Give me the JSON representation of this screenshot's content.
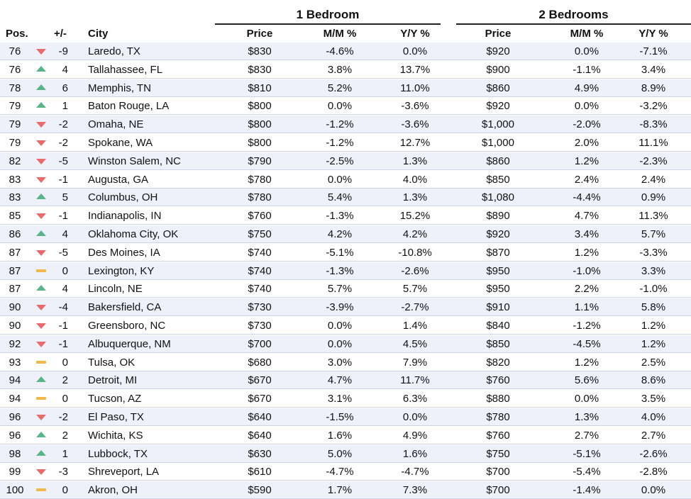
{
  "chart_data": {
    "type": "table",
    "groups": [
      "1 Bedroom",
      "2 Bedrooms"
    ],
    "columns": {
      "pos": "Pos.",
      "change": "+/-",
      "city": "City",
      "price_1": "Price",
      "mm_1": "M/M %",
      "yy_1": "Y/Y %",
      "price_2": "Price",
      "mm_2": "M/M %",
      "yy_2": "Y/Y %"
    },
    "colors": {
      "up": "#58b58a",
      "down": "#e86a6a",
      "flat": "#f2b94a",
      "alt_row": "#eef0fa",
      "row_border": "#cfd6ea"
    },
    "rows": [
      {
        "pos": "76",
        "trend": "down",
        "change": "-9",
        "city": "Laredo, TX",
        "price_1": "$830",
        "mm_1": "-4.6%",
        "yy_1": "0.0%",
        "price_2": "$920",
        "mm_2": "0.0%",
        "yy_2": "-7.1%"
      },
      {
        "pos": "76",
        "trend": "up",
        "change": "4",
        "city": "Tallahassee, FL",
        "price_1": "$830",
        "mm_1": "3.8%",
        "yy_1": "13.7%",
        "price_2": "$900",
        "mm_2": "-1.1%",
        "yy_2": "3.4%"
      },
      {
        "pos": "78",
        "trend": "up",
        "change": "6",
        "city": "Memphis, TN",
        "price_1": "$810",
        "mm_1": "5.2%",
        "yy_1": "11.0%",
        "price_2": "$860",
        "mm_2": "4.9%",
        "yy_2": "8.9%"
      },
      {
        "pos": "79",
        "trend": "up",
        "change": "1",
        "city": "Baton Rouge, LA",
        "price_1": "$800",
        "mm_1": "0.0%",
        "yy_1": "-3.6%",
        "price_2": "$920",
        "mm_2": "0.0%",
        "yy_2": "-3.2%"
      },
      {
        "pos": "79",
        "trend": "down",
        "change": "-2",
        "city": "Omaha, NE",
        "price_1": "$800",
        "mm_1": "-1.2%",
        "yy_1": "-3.6%",
        "price_2": "$1,000",
        "mm_2": "-2.0%",
        "yy_2": "-8.3%"
      },
      {
        "pos": "79",
        "trend": "down",
        "change": "-2",
        "city": "Spokane, WA",
        "price_1": "$800",
        "mm_1": "-1.2%",
        "yy_1": "12.7%",
        "price_2": "$1,000",
        "mm_2": "2.0%",
        "yy_2": "11.1%"
      },
      {
        "pos": "82",
        "trend": "down",
        "change": "-5",
        "city": "Winston Salem, NC",
        "price_1": "$790",
        "mm_1": "-2.5%",
        "yy_1": "1.3%",
        "price_2": "$860",
        "mm_2": "1.2%",
        "yy_2": "-2.3%"
      },
      {
        "pos": "83",
        "trend": "down",
        "change": "-1",
        "city": "Augusta, GA",
        "price_1": "$780",
        "mm_1": "0.0%",
        "yy_1": "4.0%",
        "price_2": "$850",
        "mm_2": "2.4%",
        "yy_2": "2.4%"
      },
      {
        "pos": "83",
        "trend": "up",
        "change": "5",
        "city": "Columbus, OH",
        "price_1": "$780",
        "mm_1": "5.4%",
        "yy_1": "1.3%",
        "price_2": "$1,080",
        "mm_2": "-4.4%",
        "yy_2": "0.9%"
      },
      {
        "pos": "85",
        "trend": "down",
        "change": "-1",
        "city": "Indianapolis, IN",
        "price_1": "$760",
        "mm_1": "-1.3%",
        "yy_1": "15.2%",
        "price_2": "$890",
        "mm_2": "4.7%",
        "yy_2": "11.3%"
      },
      {
        "pos": "86",
        "trend": "up",
        "change": "4",
        "city": "Oklahoma City, OK",
        "price_1": "$750",
        "mm_1": "4.2%",
        "yy_1": "4.2%",
        "price_2": "$920",
        "mm_2": "3.4%",
        "yy_2": "5.7%"
      },
      {
        "pos": "87",
        "trend": "down",
        "change": "-5",
        "city": "Des Moines, IA",
        "price_1": "$740",
        "mm_1": "-5.1%",
        "yy_1": "-10.8%",
        "price_2": "$870",
        "mm_2": "1.2%",
        "yy_2": "-3.3%"
      },
      {
        "pos": "87",
        "trend": "flat",
        "change": "0",
        "city": "Lexington, KY",
        "price_1": "$740",
        "mm_1": "-1.3%",
        "yy_1": "-2.6%",
        "price_2": "$950",
        "mm_2": "-1.0%",
        "yy_2": "3.3%"
      },
      {
        "pos": "87",
        "trend": "up",
        "change": "4",
        "city": "Lincoln, NE",
        "price_1": "$740",
        "mm_1": "5.7%",
        "yy_1": "5.7%",
        "price_2": "$950",
        "mm_2": "2.2%",
        "yy_2": "-1.0%"
      },
      {
        "pos": "90",
        "trend": "down",
        "change": "-4",
        "city": "Bakersfield, CA",
        "price_1": "$730",
        "mm_1": "-3.9%",
        "yy_1": "-2.7%",
        "price_2": "$910",
        "mm_2": "1.1%",
        "yy_2": "5.8%"
      },
      {
        "pos": "90",
        "trend": "down",
        "change": "-1",
        "city": "Greensboro, NC",
        "price_1": "$730",
        "mm_1": "0.0%",
        "yy_1": "1.4%",
        "price_2": "$840",
        "mm_2": "-1.2%",
        "yy_2": "1.2%"
      },
      {
        "pos": "92",
        "trend": "down",
        "change": "-1",
        "city": "Albuquerque, NM",
        "price_1": "$700",
        "mm_1": "0.0%",
        "yy_1": "4.5%",
        "price_2": "$850",
        "mm_2": "-4.5%",
        "yy_2": "1.2%"
      },
      {
        "pos": "93",
        "trend": "flat",
        "change": "0",
        "city": "Tulsa, OK",
        "price_1": "$680",
        "mm_1": "3.0%",
        "yy_1": "7.9%",
        "price_2": "$820",
        "mm_2": "1.2%",
        "yy_2": "2.5%"
      },
      {
        "pos": "94",
        "trend": "up",
        "change": "2",
        "city": "Detroit, MI",
        "price_1": "$670",
        "mm_1": "4.7%",
        "yy_1": "11.7%",
        "price_2": "$760",
        "mm_2": "5.6%",
        "yy_2": "8.6%"
      },
      {
        "pos": "94",
        "trend": "flat",
        "change": "0",
        "city": "Tucson, AZ",
        "price_1": "$670",
        "mm_1": "3.1%",
        "yy_1": "6.3%",
        "price_2": "$880",
        "mm_2": "0.0%",
        "yy_2": "3.5%"
      },
      {
        "pos": "96",
        "trend": "down",
        "change": "-2",
        "city": "El Paso, TX",
        "price_1": "$640",
        "mm_1": "-1.5%",
        "yy_1": "0.0%",
        "price_2": "$780",
        "mm_2": "1.3%",
        "yy_2": "4.0%"
      },
      {
        "pos": "96",
        "trend": "up",
        "change": "2",
        "city": "Wichita, KS",
        "price_1": "$640",
        "mm_1": "1.6%",
        "yy_1": "4.9%",
        "price_2": "$760",
        "mm_2": "2.7%",
        "yy_2": "2.7%"
      },
      {
        "pos": "98",
        "trend": "up",
        "change": "1",
        "city": "Lubbock, TX",
        "price_1": "$630",
        "mm_1": "5.0%",
        "yy_1": "1.6%",
        "price_2": "$750",
        "mm_2": "-5.1%",
        "yy_2": "-2.6%"
      },
      {
        "pos": "99",
        "trend": "down",
        "change": "-3",
        "city": "Shreveport, LA",
        "price_1": "$610",
        "mm_1": "-4.7%",
        "yy_1": "-4.7%",
        "price_2": "$700",
        "mm_2": "-5.4%",
        "yy_2": "-2.8%"
      },
      {
        "pos": "100",
        "trend": "flat",
        "change": "0",
        "city": "Akron, OH",
        "price_1": "$590",
        "mm_1": "1.7%",
        "yy_1": "7.3%",
        "price_2": "$700",
        "mm_2": "-1.4%",
        "yy_2": "0.0%"
      }
    ]
  }
}
